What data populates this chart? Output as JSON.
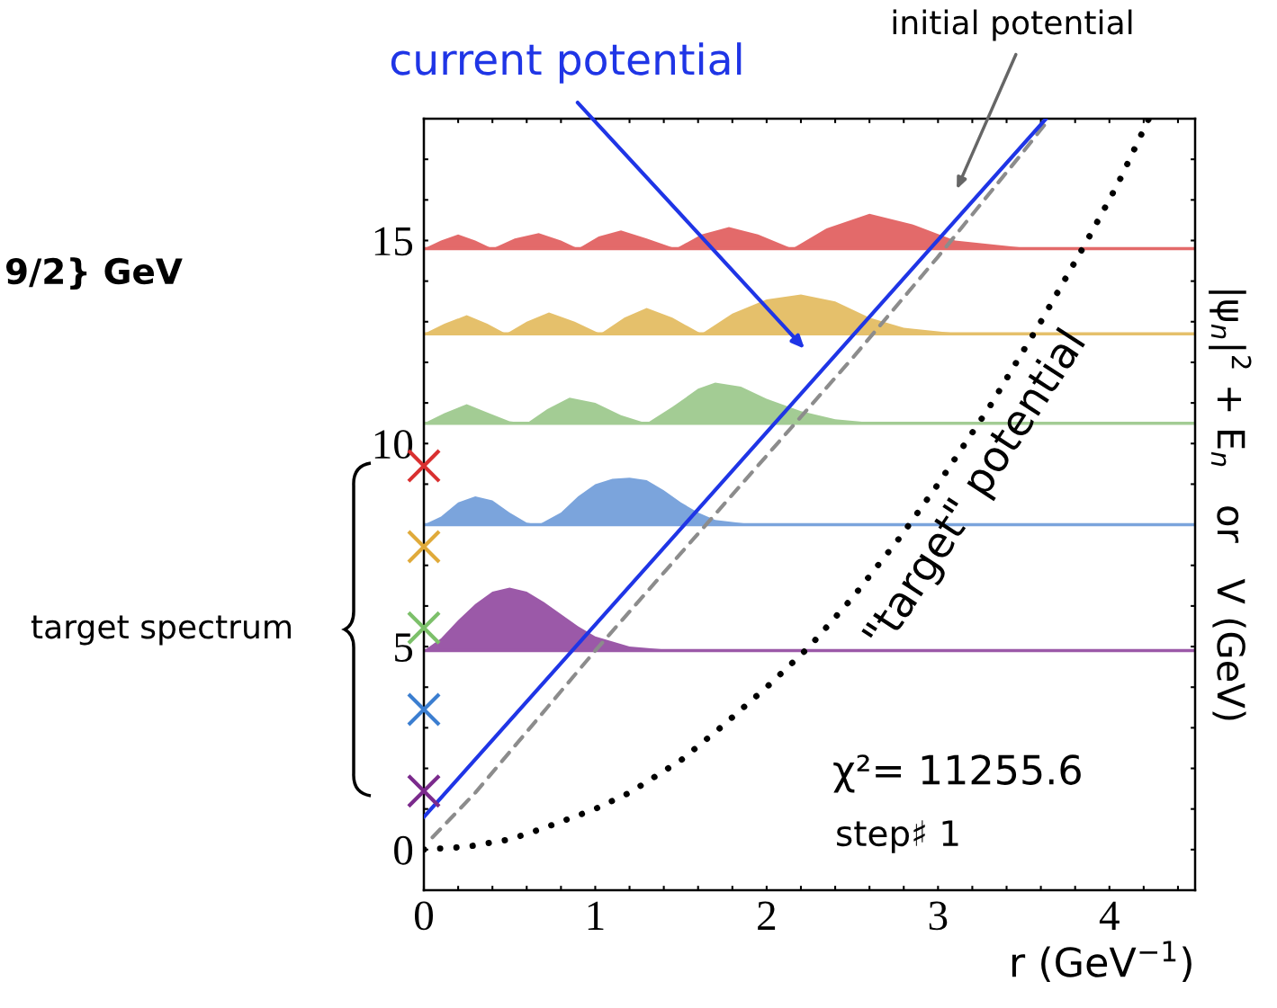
{
  "chart_data": {
    "type": "line",
    "xlabel": "r (GeV$^{−1}$)",
    "ylabel": "|ψ$_{n}$|$^{2}$ + E$_{n}$   or   V (GeV)",
    "xlim": [
      0,
      4.5
    ],
    "ylim": [
      -1,
      18
    ],
    "xticks": [
      0,
      {
        "value": 0.2,
        "label": null
      },
      {
        "value": 0.4,
        "label": null
      },
      {
        "value": 0.6,
        "label": null
      },
      {
        "value": 0.8,
        "label": null
      },
      1,
      {
        "value": 1.2,
        "label": null
      },
      {
        "value": 1.4,
        "label": null
      },
      {
        "value": 1.6,
        "label": null
      },
      {
        "value": 1.8,
        "label": null
      },
      2,
      {
        "value": 2.2,
        "label": null
      },
      {
        "value": 2.4,
        "label": null
      },
      {
        "value": 2.6,
        "label": null
      },
      {
        "value": 2.8,
        "label": null
      },
      3,
      {
        "value": 3.2,
        "label": null
      },
      {
        "value": 3.4,
        "label": null
      },
      {
        "value": 3.6,
        "label": null
      },
      {
        "value": 3.8,
        "label": null
      },
      4,
      {
        "value": 4.2,
        "label": null
      },
      {
        "value": 4.4,
        "label": null
      }
    ],
    "yticks": [
      0,
      {
        "value": 1,
        "label": null
      },
      {
        "value": 2,
        "label": null
      },
      {
        "value": 3,
        "label": null
      },
      {
        "value": 4,
        "label": null
      },
      5,
      {
        "value": 6,
        "label": null
      },
      {
        "value": 7,
        "label": null
      },
      {
        "value": 8,
        "label": null
      },
      {
        "value": 9,
        "label": null
      },
      10,
      {
        "value": 11,
        "label": null
      },
      {
        "value": 12,
        "label": null
      },
      {
        "value": 13,
        "label": null
      },
      {
        "value": 14,
        "label": null
      },
      15,
      {
        "value": 16,
        "label": null
      },
      {
        "value": 17,
        "label": null
      }
    ],
    "grid": false,
    "ref_lines": [
      {
        "axis": "y",
        "value": 4.9,
        "color": "#9b59a8"
      },
      {
        "axis": "y",
        "value": 8.0,
        "color": "#7ba4dc"
      },
      {
        "axis": "y",
        "value": 10.5,
        "color": "#a3cc94"
      },
      {
        "axis": "y",
        "value": 12.7,
        "color": "#e5c06b"
      },
      {
        "axis": "y",
        "value": 14.8,
        "color": "#e36a6a"
      }
    ],
    "series": [
      {
        "type": "area",
        "color": "#9b59a8",
        "x": [
          0,
          0.1,
          0.2,
          0.3,
          0.4,
          0.5,
          0.6,
          0.7,
          0.8,
          0.9,
          1.0,
          1.2,
          1.4,
          1.6
        ],
        "values": [
          4.9,
          5.2,
          5.65,
          6.05,
          6.35,
          6.45,
          6.35,
          6.1,
          5.8,
          5.5,
          5.25,
          5.0,
          4.93,
          4.9
        ]
      },
      {
        "type": "area",
        "color": "#7ba4dc",
        "x": [
          0,
          0.1,
          0.2,
          0.3,
          0.4,
          0.5,
          0.6,
          0.67,
          0.8,
          0.9,
          1.0,
          1.1,
          1.2,
          1.3,
          1.4,
          1.5,
          1.6,
          1.7,
          1.9,
          2.2
        ],
        "values": [
          8.0,
          8.2,
          8.55,
          8.7,
          8.6,
          8.3,
          8.05,
          8.0,
          8.3,
          8.7,
          9.0,
          9.13,
          9.16,
          9.1,
          8.85,
          8.55,
          8.3,
          8.12,
          8.02,
          8.0
        ]
      },
      {
        "type": "area",
        "color": "#a3cc94",
        "x": [
          0,
          0.12,
          0.25,
          0.38,
          0.5,
          0.6,
          0.72,
          0.85,
          1.0,
          1.15,
          1.3,
          1.45,
          1.6,
          1.7,
          1.85,
          2.0,
          2.2,
          2.4,
          2.6,
          2.8
        ],
        "values": [
          10.5,
          10.75,
          10.97,
          10.75,
          10.55,
          10.5,
          10.85,
          11.13,
          11.0,
          10.7,
          10.5,
          10.9,
          11.35,
          11.5,
          11.4,
          11.1,
          10.8,
          10.6,
          10.52,
          10.5
        ]
      },
      {
        "type": "area",
        "color": "#e5c06b",
        "x": [
          0,
          0.12,
          0.25,
          0.37,
          0.48,
          0.6,
          0.73,
          0.88,
          1.03,
          1.17,
          1.3,
          1.45,
          1.62,
          1.8,
          2.0,
          2.2,
          2.4,
          2.6,
          2.8,
          3.1
        ],
        "values": [
          12.7,
          12.95,
          13.16,
          12.95,
          12.7,
          13.0,
          13.23,
          13.0,
          12.7,
          13.1,
          13.34,
          13.1,
          12.7,
          13.2,
          13.55,
          13.67,
          13.5,
          13.1,
          12.85,
          12.72
        ]
      },
      {
        "type": "area",
        "color": "#e36a6a",
        "x": [
          0,
          0.1,
          0.2,
          0.3,
          0.4,
          0.53,
          0.67,
          0.8,
          0.9,
          1.02,
          1.15,
          1.3,
          1.47,
          1.62,
          1.78,
          1.95,
          2.15,
          2.35,
          2.6,
          2.85,
          3.1,
          3.5
        ],
        "values": [
          14.8,
          15.0,
          15.15,
          15.0,
          14.8,
          15.05,
          15.18,
          15.0,
          14.8,
          15.1,
          15.25,
          15.05,
          14.8,
          15.15,
          15.33,
          15.15,
          14.8,
          15.3,
          15.66,
          15.4,
          15.0,
          14.82
        ]
      },
      {
        "color": "#000000",
        "line_style": "dotted",
        "marker": "none",
        "x": [
          0,
          0.25,
          0.5,
          0.68,
          1.0,
          1.2,
          1.5,
          1.73,
          2.0,
          2.25,
          2.5,
          2.78,
          3.0,
          3.3,
          3.6,
          3.87,
          4.05,
          4.23
        ],
        "values": [
          0,
          0.07,
          0.25,
          0.5,
          1.0,
          1.4,
          2.2,
          3.0,
          4.0,
          5.0,
          6.2,
          7.7,
          9.0,
          10.9,
          13.0,
          15.0,
          16.4,
          18.0
        ]
      },
      {
        "color": "#8c8c8c",
        "line_style": "dashed",
        "marker": "none",
        "x": [
          0.05,
          0.3,
          0.6,
          1.0,
          1.5,
          2.0,
          2.5,
          3.0,
          3.5,
          3.65
        ],
        "values": [
          0.3,
          1.4,
          2.9,
          4.9,
          7.3,
          9.7,
          12.1,
          14.6,
          17.2,
          18.0
        ]
      },
      {
        "color": "#1f35e6",
        "line_style": "solid",
        "marker": "none",
        "x": [
          0,
          3.63
        ],
        "values": [
          0.8,
          18.0
        ]
      },
      {
        "type": "scatter",
        "marker": "cross",
        "x": [
          0,
          0,
          0,
          0,
          0
        ],
        "values": [
          9.45,
          7.46,
          5.46,
          3.45,
          1.44
        ],
        "colors": [
          "#d93030",
          "#e0aa3a",
          "#7cc06a",
          "#3b7ed0",
          "#7b2a8c"
        ]
      }
    ],
    "annotations": [
      "current potential",
      "initial potential",
      "\"target\" potential",
      "χ²= 11255.6",
      "step♯ 1",
      "target spectrum",
      "9/2} GeV"
    ]
  }
}
